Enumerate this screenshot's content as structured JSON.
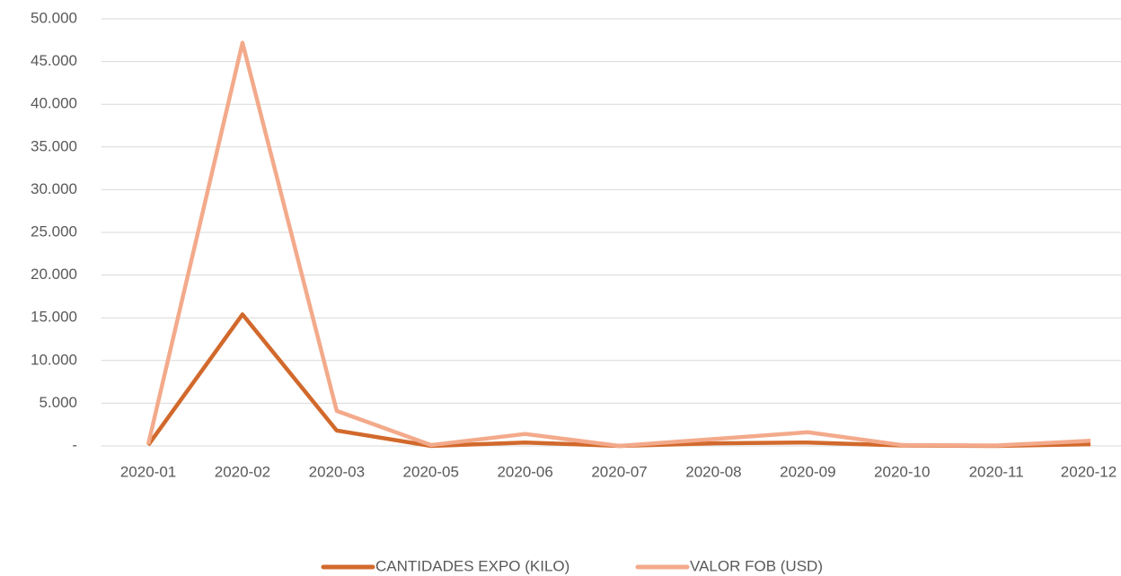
{
  "chart_data": {
    "type": "line",
    "categories": [
      "2020-01",
      "2020-02",
      "2020-03",
      "2020-05",
      "2020-06",
      "2020-07",
      "2020-08",
      "2020-09",
      "2020-10",
      "2020-11",
      "2020-12"
    ],
    "series": [
      {
        "name": "CANTIDADES EXPO (KILO)",
        "color": "#d2692c",
        "values": [
          100,
          15400,
          1800,
          0,
          400,
          0,
          300,
          400,
          50,
          0,
          200
        ]
      },
      {
        "name": "VALOR FOB (USD)",
        "color": "#f3aa8b",
        "values": [
          200,
          47200,
          4100,
          100,
          1400,
          0,
          800,
          1600,
          100,
          50,
          600
        ]
      }
    ],
    "ylim": [
      0,
      50000
    ],
    "yticks": [
      {
        "value": 0,
        "label": "-"
      },
      {
        "value": 5000,
        "label": "5.000"
      },
      {
        "value": 10000,
        "label": "10.000"
      },
      {
        "value": 15000,
        "label": "15.000"
      },
      {
        "value": 20000,
        "label": "20.000"
      },
      {
        "value": 25000,
        "label": "25.000"
      },
      {
        "value": 30000,
        "label": "30.000"
      },
      {
        "value": 35000,
        "label": "35.000"
      },
      {
        "value": 40000,
        "label": "40.000"
      },
      {
        "value": 45000,
        "label": "45.000"
      },
      {
        "value": 50000,
        "label": "50.000"
      }
    ],
    "grid": true,
    "legend": "bottom"
  }
}
